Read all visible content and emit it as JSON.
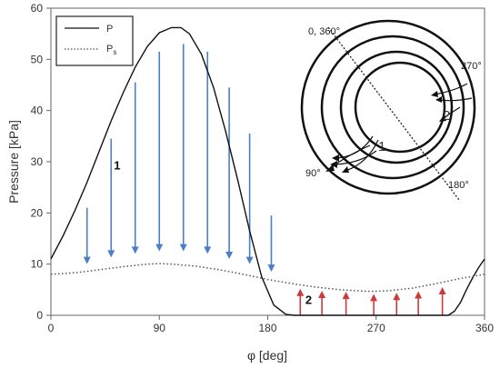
{
  "chart_data": {
    "type": "line",
    "xlabel": "φ [deg]",
    "ylabel": "Pressure [kPa]",
    "xlim": [
      0,
      360
    ],
    "ylim": [
      0,
      60
    ],
    "x_ticks": [
      0,
      90,
      180,
      270,
      360
    ],
    "y_ticks": [
      0,
      10,
      20,
      30,
      40,
      50,
      60
    ],
    "grid": false,
    "legend_position": "top-left",
    "series": [
      {
        "name": "P",
        "style": "solid",
        "color": "#111111",
        "x": [
          0,
          10,
          20,
          30,
          40,
          50,
          60,
          70,
          80,
          90,
          100,
          108,
          115,
          125,
          135,
          145,
          155,
          165,
          175,
          185,
          195,
          202,
          210,
          230,
          250,
          270,
          290,
          310,
          330,
          335,
          340,
          345,
          350,
          355,
          360
        ],
        "y": [
          11,
          15.5,
          20.5,
          26,
          32,
          38,
          43.5,
          48.5,
          52.5,
          55.2,
          56.2,
          56.2,
          55,
          51,
          44.5,
          36,
          26.5,
          16.5,
          7.5,
          2,
          0.2,
          0,
          0,
          0,
          0,
          0,
          0,
          0,
          0,
          0.8,
          2.5,
          5,
          7.3,
          9.3,
          11
        ]
      },
      {
        "name": "Ps",
        "style": "dotted",
        "color": "#555555",
        "x": [
          0,
          20,
          40,
          60,
          80,
          90,
          100,
          120,
          140,
          160,
          180,
          200,
          220,
          240,
          260,
          270,
          280,
          300,
          320,
          340,
          360
        ],
        "y": [
          8,
          8.3,
          8.9,
          9.5,
          10,
          10.1,
          10,
          9.6,
          8.9,
          8,
          7,
          6.2,
          5.5,
          5,
          4.7,
          4.7,
          4.8,
          5.3,
          6.2,
          7.2,
          8
        ]
      }
    ],
    "annotations": {
      "region1_label": "1",
      "region2_label": "2",
      "down_arrows": [
        {
          "x": 30,
          "top": 21,
          "bottom": 10
        },
        {
          "x": 50,
          "top": 34.5,
          "bottom": 11.3
        },
        {
          "x": 70,
          "top": 45.5,
          "bottom": 12
        },
        {
          "x": 90,
          "top": 51.5,
          "bottom": 12.5
        },
        {
          "x": 110,
          "top": 53,
          "bottom": 12.5
        },
        {
          "x": 130,
          "top": 51.5,
          "bottom": 12
        },
        {
          "x": 148,
          "top": 44.5,
          "bottom": 11
        },
        {
          "x": 165,
          "top": 35.5,
          "bottom": 10
        },
        {
          "x": 183,
          "top": 19.5,
          "bottom": 8.5
        }
      ],
      "up_arrows": [
        {
          "x": 207,
          "bottom": 0,
          "top": 5.2
        },
        {
          "x": 225,
          "bottom": 0,
          "top": 4.8
        },
        {
          "x": 245,
          "bottom": 0,
          "top": 4.6
        },
        {
          "x": 268,
          "bottom": 0,
          "top": 4.2
        },
        {
          "x": 287,
          "bottom": 0,
          "top": 4.4
        },
        {
          "x": 305,
          "bottom": 0,
          "top": 4.7
        },
        {
          "x": 325,
          "bottom": 0,
          "top": 5.5
        }
      ]
    }
  },
  "legend": {
    "p_label": "P",
    "ps_label": "P",
    "ps_sub": "s"
  },
  "inset": {
    "top_label": "0, 360°",
    "right_label": "270°",
    "bottom_label": "180°",
    "left_label": "90°",
    "region1": "1",
    "region2": "2"
  },
  "colors": {
    "down_arrow": "#4a80c8",
    "up_arrow": "#cc3b3b",
    "axis": "#666666"
  }
}
